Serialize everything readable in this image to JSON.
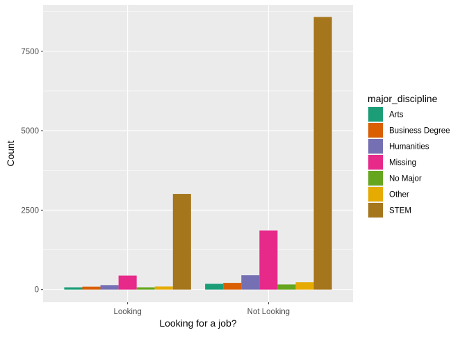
{
  "chart_data": {
    "type": "bar",
    "title": "",
    "xlabel": "Looking for a job?",
    "ylabel": "Count",
    "ylim": [
      -400,
      8960
    ],
    "y_ticks": [
      0,
      2500,
      5000,
      7500
    ],
    "y_tick_labels": [
      "0",
      "2500",
      "5000",
      "7500"
    ],
    "grid": true,
    "legend_position": "right",
    "legend_title": "major_discipline",
    "categories": [
      "Looking",
      "Not Looking"
    ],
    "series": [
      {
        "name": "Arts",
        "color": "#1B9E77",
        "values": [
          70,
          180
        ]
      },
      {
        "name": "Business Degree",
        "color": "#D95F02",
        "values": [
          90,
          210
        ]
      },
      {
        "name": "Humanities",
        "color": "#7570B3",
        "values": [
          140,
          450
        ]
      },
      {
        "name": "Missing",
        "color": "#E7298A",
        "values": [
          440,
          1860
        ]
      },
      {
        "name": "No Major",
        "color": "#66A61E",
        "values": [
          70,
          160
        ]
      },
      {
        "name": "Other",
        "color": "#E6AB02",
        "values": [
          95,
          230
        ]
      },
      {
        "name": "STEM",
        "color": "#A6761D",
        "values": [
          3010,
          8580
        ]
      }
    ]
  }
}
